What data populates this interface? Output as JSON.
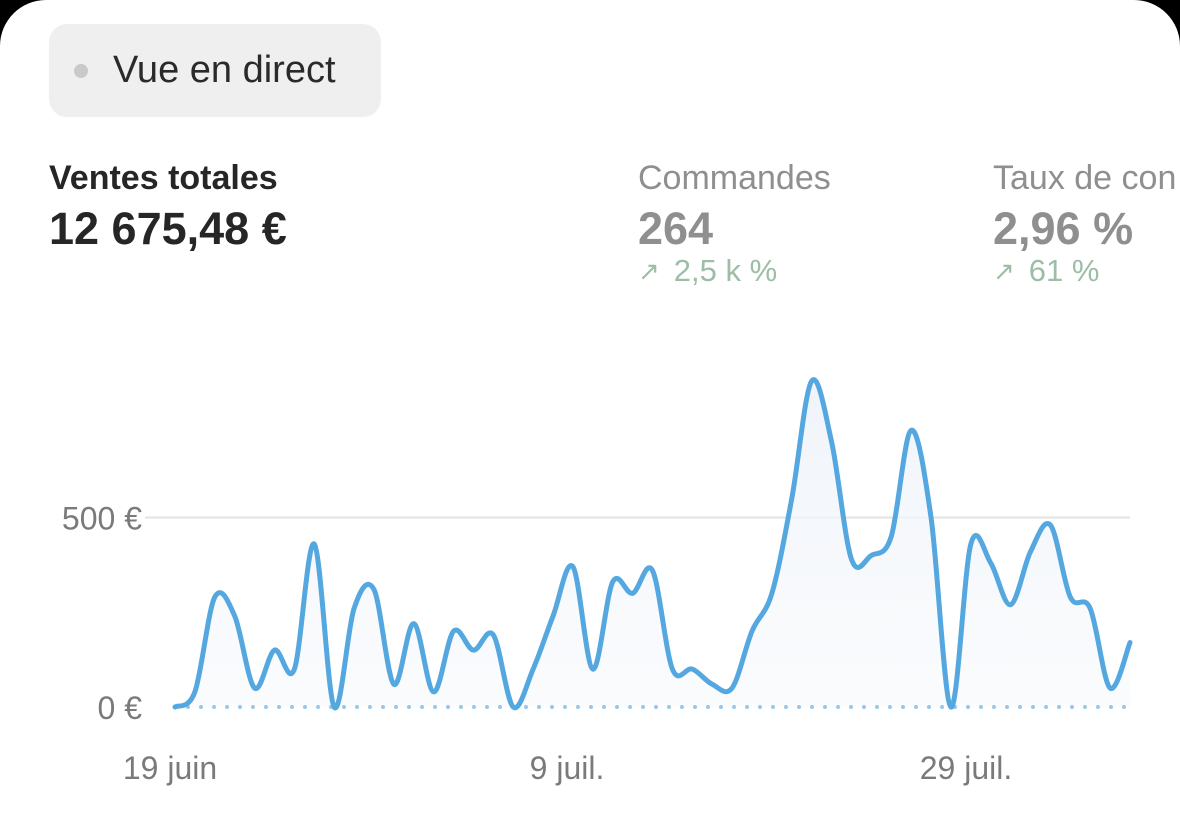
{
  "live_view": {
    "label": "Vue en direct"
  },
  "metrics": [
    {
      "label": "Ventes totales",
      "value": "12 675,48 €"
    },
    {
      "label": "Commandes",
      "value": "264",
      "change": "2,5 k %"
    },
    {
      "label": "Taux de con",
      "value": "2,96 %",
      "change": "61 %"
    }
  ],
  "colors": {
    "line": "#55a7e0",
    "baseline": "#98c7ea",
    "grid": "#e3e3e3",
    "trend_up": "#9dbda6"
  },
  "chart_data": {
    "type": "line",
    "x_ticks": [
      "19 juin",
      "9 juil.",
      "29 juil."
    ],
    "y_ticks": [
      {
        "value": 0,
        "label": "0 €"
      },
      {
        "value": 500,
        "label": "500 €"
      }
    ],
    "ylim": [
      0,
      900
    ],
    "grid": true,
    "dotted_baseline": true,
    "series": [
      {
        "values": [
          0,
          40,
          290,
          240,
          50,
          150,
          100,
          430,
          0,
          260,
          310,
          60,
          220,
          40,
          200,
          150,
          190,
          0,
          100,
          240,
          370,
          100,
          330,
          300,
          360,
          100,
          100,
          60,
          50,
          200,
          300,
          550,
          860,
          700,
          390,
          400,
          450,
          730,
          500,
          0,
          430,
          380,
          270,
          410,
          480,
          290,
          260,
          50,
          170
        ]
      }
    ]
  }
}
